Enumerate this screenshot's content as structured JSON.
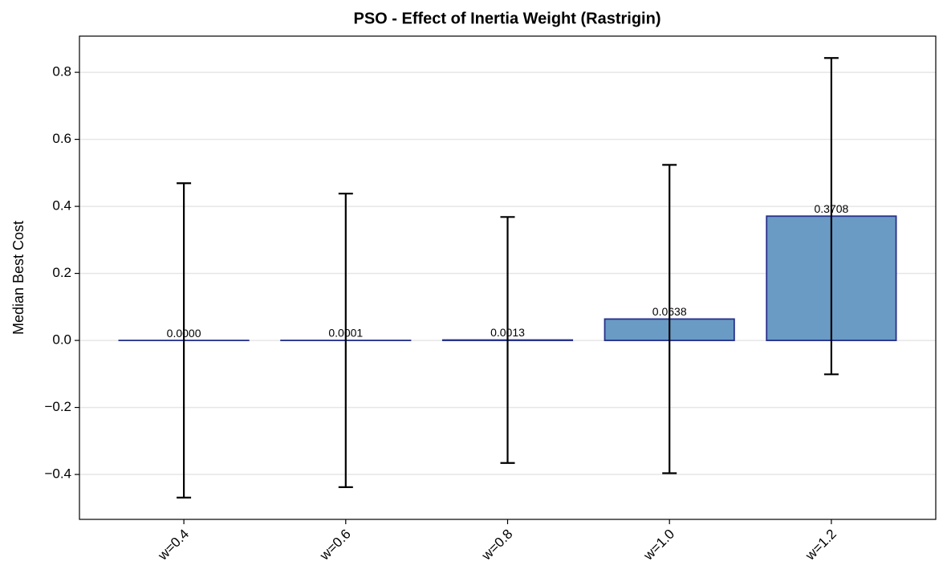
{
  "chart_data": {
    "type": "bar",
    "title": "PSO - Effect of Inertia Weight (Rastrigin)",
    "ylabel": "Median Best Cost",
    "categories": [
      "w=0.4",
      "w=0.6",
      "w=0.8",
      "w=1.0",
      "w=1.2"
    ],
    "values": [
      0,
      0.0001,
      0.0013,
      0.0638,
      0.3708
    ],
    "value_labels": [
      "0.0000",
      "0.0001",
      "0.0013",
      "0.0638",
      "0.3708"
    ],
    "errors": [
      0.469,
      0.438,
      0.367,
      0.46,
      0.472
    ],
    "color": "#6a9bc5",
    "edgecolor": "#25318a",
    "errorcolor": "#000000",
    "ylim": [
      -0.534,
      0.908
    ],
    "yticks": [
      {
        "value": -0.4,
        "label": "−0.4"
      },
      {
        "value": -0.2,
        "label": "−0.2"
      },
      {
        "value": 0,
        "label": "0.0"
      },
      0.2,
      0.4,
      0.6,
      0.8
    ],
    "grid": true
  }
}
